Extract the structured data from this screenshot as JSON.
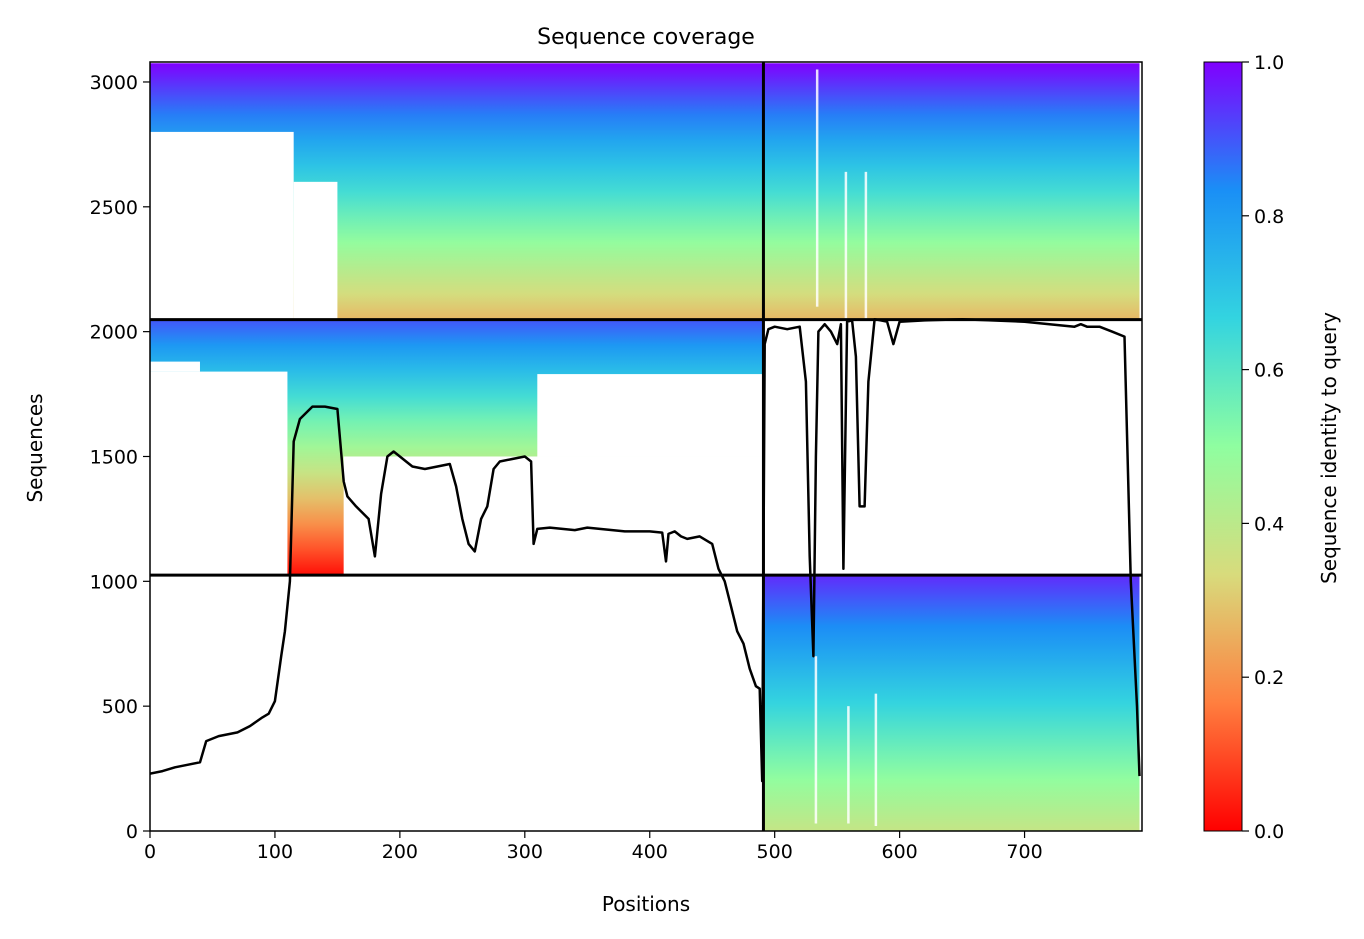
{
  "chart_data": {
    "type": "heatmap",
    "title": "Sequence coverage",
    "xlabel": "Positions",
    "ylabel": "Sequences",
    "xlim": [
      0,
      794
    ],
    "ylim": [
      0,
      3080
    ],
    "x_ticks": [
      0,
      100,
      200,
      300,
      400,
      500,
      600,
      700
    ],
    "y_ticks": [
      0,
      500,
      1000,
      1500,
      2000,
      2500,
      3000
    ],
    "colorbar": {
      "label": "Sequence identity to query",
      "range": [
        0,
        1
      ],
      "ticks": [
        "0.0",
        "0.2",
        "0.4",
        "0.6",
        "0.8",
        "1.0"
      ],
      "colormap": "rainbow_r",
      "stops": [
        "#ff0000",
        "#ff7f3f",
        "#d8db7c",
        "#8ffea0",
        "#33d4e0",
        "#1a8ff6",
        "#8000ff"
      ]
    },
    "chain_boundaries": {
      "x": [
        491
      ],
      "y": [
        1025,
        2048
      ]
    },
    "blocks": [
      {
        "name": "block-bottom-right",
        "x": [
          491,
          792
        ],
        "y": [
          0,
          1025
        ],
        "identity_top": 0.95,
        "identity_bottom": 0.38
      },
      {
        "name": "block-middle-left",
        "x": [
          0,
          491
        ],
        "y": [
          1025,
          2048
        ],
        "identity_top": 0.9,
        "identity_bottom": 0.02
      },
      {
        "name": "block-top",
        "x": [
          0,
          792
        ],
        "y": [
          2048,
          3075
        ],
        "identity_top": 1.0,
        "identity_bottom": 0.27
      }
    ],
    "series": [
      {
        "color": "#000000",
        "x": [
          0,
          10,
          20,
          30,
          40,
          45,
          55,
          60,
          70,
          80,
          90,
          95,
          100,
          105,
          108,
          112,
          115,
          120,
          130,
          140,
          150,
          155,
          158,
          165,
          175,
          180,
          185,
          190,
          195,
          200,
          205,
          210,
          220,
          230,
          240,
          245,
          250,
          255,
          260,
          265,
          270,
          275,
          280,
          290,
          300,
          305,
          307,
          310,
          320,
          330,
          340,
          350,
          360,
          370,
          380,
          390,
          400,
          410,
          413,
          415,
          420,
          425,
          430,
          440,
          450,
          455,
          460,
          465,
          470,
          475,
          480,
          485,
          488,
          490,
          492,
          495,
          500,
          510,
          520,
          525,
          528,
          531,
          533,
          535,
          540,
          545,
          550,
          553,
          555,
          558,
          562,
          565,
          568,
          572,
          575,
          580,
          590,
          595,
          600,
          620,
          650,
          700,
          720,
          740,
          745,
          750,
          760,
          770,
          780,
          785,
          790,
          792
        ],
        "y": [
          230,
          240,
          255,
          265,
          275,
          360,
          380,
          385,
          395,
          420,
          455,
          470,
          520,
          700,
          800,
          1000,
          1560,
          1650,
          1700,
          1700,
          1690,
          1400,
          1340,
          1300,
          1250,
          1100,
          1350,
          1500,
          1520,
          1500,
          1480,
          1460,
          1450,
          1460,
          1470,
          1380,
          1250,
          1150,
          1120,
          1250,
          1300,
          1450,
          1480,
          1490,
          1500,
          1480,
          1150,
          1210,
          1215,
          1210,
          1205,
          1215,
          1210,
          1205,
          1200,
          1200,
          1200,
          1195,
          1080,
          1190,
          1200,
          1180,
          1170,
          1180,
          1150,
          1050,
          1000,
          900,
          800,
          750,
          650,
          580,
          570,
          200,
          1950,
          2010,
          2020,
          2010,
          2020,
          1800,
          1100,
          700,
          1500,
          2000,
          2030,
          2000,
          1950,
          2030,
          1050,
          2040,
          2045,
          1900,
          1300,
          1300,
          1800,
          2050,
          2040,
          1950,
          2040,
          2045,
          2050,
          2040,
          2030,
          2020,
          2030,
          2020,
          2020,
          2000,
          1980,
          1000,
          500,
          220
        ]
      }
    ]
  }
}
